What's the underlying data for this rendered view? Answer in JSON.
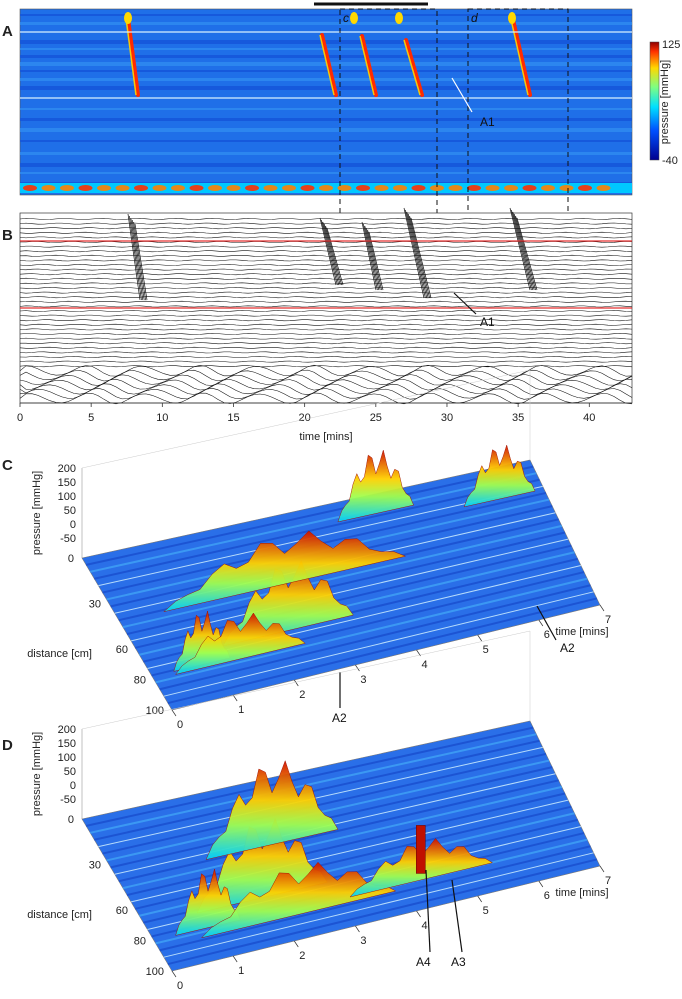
{
  "panels": {
    "A": "A",
    "B": "B",
    "C": "C",
    "D": "D"
  },
  "colorbar": {
    "max_label": "125",
    "min_label": "-40",
    "label": "pressure [mmHg]",
    "min": -40,
    "max": 125
  },
  "windows": {
    "c": "c",
    "d": "d"
  },
  "annotations": {
    "A1_top": "A1",
    "A1_mid": "A1",
    "A2_c_right": "A2",
    "A2_c_mid": "A2",
    "A3": "A3",
    "A4": "A4"
  },
  "colors": {
    "low": "#1a3cff",
    "mid": "#00c8ff",
    "warm": "#ffd800",
    "high": "#ff2a00",
    "trace": "#111111",
    "boundary_line": "#e53030"
  },
  "chart_data": [
    {
      "type": "heatmap",
      "id": "A",
      "title": "",
      "xlabel": "time [mins]",
      "ylabel": "",
      "x_range": [
        0,
        43
      ],
      "z_label": "pressure [mmHg]",
      "z_range": [
        -40,
        125
      ],
      "windows": [
        {
          "label": "c",
          "start": 22,
          "end": 29
        },
        {
          "label": "d",
          "start": 31,
          "end": 38
        }
      ]
    },
    {
      "type": "line",
      "id": "B",
      "xlabel": "time [mins]",
      "x_ticks": [
        "0",
        "5",
        "10",
        "15",
        "20",
        "25",
        "30",
        "35",
        "40"
      ],
      "x_range": [
        0,
        43
      ],
      "series_description": "multichannel pressure traces"
    },
    {
      "type": "area",
      "id": "C",
      "zlabel": "pressure [mmHg]",
      "z_ticks": [
        "200",
        "150",
        "100",
        "50",
        "0",
        "-50"
      ],
      "ylabel": "distance [cm]",
      "y_ticks": [
        "0",
        "30",
        "60",
        "80",
        "100"
      ],
      "xlabel": "time [mins]",
      "x_ticks": [
        "0",
        "1",
        "2",
        "3",
        "4",
        "5",
        "6",
        "7"
      ],
      "x_range": [
        0,
        7
      ]
    },
    {
      "type": "area",
      "id": "D",
      "zlabel": "pressure [mmHg]",
      "z_ticks": [
        "200",
        "150",
        "100",
        "50",
        "0",
        "-50"
      ],
      "ylabel": "distance [cm]",
      "y_ticks": [
        "0",
        "30",
        "60",
        "80",
        "100"
      ],
      "xlabel": "time [mins]",
      "x_ticks": [
        "0",
        "1",
        "2",
        "3",
        "4",
        "5",
        "6",
        "7"
      ],
      "x_range": [
        0,
        7
      ]
    }
  ]
}
